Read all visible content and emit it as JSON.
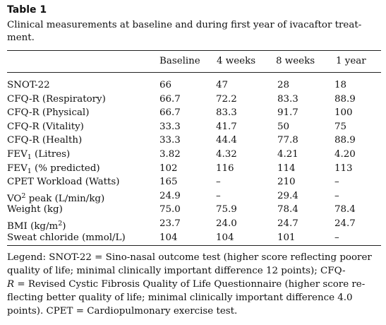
{
  "title": "Table 1",
  "caption": "Clinical measurements at baseline and during first year of ivacaftor treat-ment.",
  "caption_line1": "Clinical measurements at baseline and during first year of ivacaftor treat-",
  "caption_line2": "ment.",
  "columns": [
    "",
    "Baseline",
    "4 weeks",
    "8 weeks",
    "1 year"
  ],
  "rows": [
    {
      "label": "SNOT-22",
      "values": [
        "66",
        "47",
        "28",
        "18"
      ]
    },
    {
      "label": "CFQ-R (Respiratory)",
      "values": [
        "66.7",
        "72.2",
        "83.3",
        "88.9"
      ]
    },
    {
      "label": "CFQ-R (Physical)",
      "values": [
        "66.7",
        "83.3",
        "91.7",
        "100"
      ]
    },
    {
      "label": "CFQ-R (Vitality)",
      "values": [
        "33.3",
        "41.7",
        "50",
        "75"
      ]
    },
    {
      "label": "CFQ-R (Health)",
      "values": [
        "33.3",
        "44.4",
        "77.8",
        "88.9"
      ]
    },
    {
      "label": "FEV1 (Litres)",
      "label_pre": "FEV",
      "label_sub": "1",
      "label_post": " (Litres)",
      "values": [
        "3.82",
        "4.32",
        "4.21",
        "4.20"
      ]
    },
    {
      "label": "FEV1 (% predicted)",
      "label_pre": "FEV",
      "label_sub": "1",
      "label_post": " (% predicted)",
      "values": [
        "102",
        "116",
        "114",
        "113"
      ]
    },
    {
      "label": "CPET Workload (Watts)",
      "values": [
        "165",
        "–",
        "210",
        "–"
      ]
    },
    {
      "label": "VO2 peak (L/min/kg)",
      "label_pre": "VO",
      "label_sup": "2",
      "label_post": " peak (L/min/kg)",
      "values": [
        "24.9",
        "–",
        "29.4",
        "–"
      ]
    },
    {
      "label": "Weight (kg)",
      "values": [
        "75.0",
        "75.9",
        "78.4",
        "78.4"
      ]
    },
    {
      "label": "BMI (kg/m2)",
      "label_pre": "BMI (kg/m",
      "label_sup": "2",
      "label_post": ")",
      "values": [
        "23.7",
        "24.0",
        "24.7",
        "24.7"
      ]
    },
    {
      "label": "Sweat chloride (mmol/L)",
      "values": [
        "104",
        "104",
        "101",
        "–"
      ]
    }
  ],
  "legend": {
    "line1": "Legend: SNOT-22 = Sino-nasal outcome test (higher score reflecting poorer",
    "line2": "quality of life; minimal clinically important difference 12 points); CFQ-",
    "line3_em": "R",
    "line3_rest": " = Revised Cystic Fibrosis Quality of Life Questionnaire (higher score re-",
    "line4": "flecting better quality of life; minimal clinically important difference 4.0",
    "line5": "points). CPET = Cardiopulmonary exercise test."
  }
}
